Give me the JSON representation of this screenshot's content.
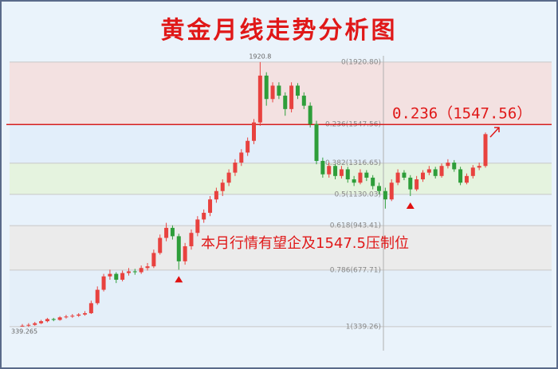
{
  "chart_data": {
    "type": "candlestick",
    "title": "黄金月线走势分析图",
    "annotations": [
      "0.236（1547.56）",
      "本月行情有望企及1547.5压制位"
    ],
    "up_color": "#e8423f",
    "down_color": "#2e9e3a",
    "line_color": "#d42020",
    "ylim": [
      196,
      2006
    ],
    "fib_levels": [
      {
        "value": 1920.8,
        "label": "0(1920.80)"
      },
      {
        "value": 1547.56,
        "label": "0.236(1547.56)"
      },
      {
        "value": 1316.65,
        "label": "0.382(1316.65)"
      },
      {
        "value": 1130.03,
        "label": "0.5(1130.03)"
      },
      {
        "value": 943.41,
        "label": "0.618(943.41)"
      },
      {
        "value": 677.71,
        "label": "0.786(677.71)"
      },
      {
        "value": 339.26,
        "label": "1(339.26)"
      }
    ],
    "band_colors": [
      "#f3e1e1",
      "#e2eefa",
      "#e5f3df",
      "#e8f2fb",
      "#ebebeb",
      "#e4eff9"
    ],
    "candles": [
      [
        340,
        355,
        339.265,
        345
      ],
      [
        345,
        360,
        338,
        350
      ],
      [
        350,
        368,
        345,
        360
      ],
      [
        360,
        380,
        355,
        372
      ],
      [
        372,
        392,
        365,
        385
      ],
      [
        385,
        392,
        372,
        380
      ],
      [
        380,
        402,
        375,
        395
      ],
      [
        395,
        410,
        388,
        400
      ],
      [
        400,
        415,
        392,
        405
      ],
      [
        405,
        420,
        398,
        412
      ],
      [
        412,
        432,
        405,
        420
      ],
      [
        420,
        495,
        415,
        480
      ],
      [
        480,
        580,
        470,
        560
      ],
      [
        560,
        655,
        550,
        640
      ],
      [
        640,
        680,
        620,
        655
      ],
      [
        655,
        665,
        600,
        620
      ],
      [
        620,
        675,
        610,
        660
      ],
      [
        660,
        690,
        645,
        670
      ],
      [
        670,
        685,
        650,
        665
      ],
      [
        665,
        705,
        655,
        690
      ],
      [
        690,
        720,
        675,
        700
      ],
      [
        700,
        800,
        690,
        780
      ],
      [
        780,
        890,
        770,
        870
      ],
      [
        870,
        960,
        850,
        930
      ],
      [
        930,
        945,
        860,
        880
      ],
      [
        880,
        895,
        680,
        730
      ],
      [
        730,
        840,
        710,
        820
      ],
      [
        820,
        920,
        800,
        900
      ],
      [
        900,
        1000,
        880,
        980
      ],
      [
        980,
        1040,
        960,
        1020
      ],
      [
        1020,
        1120,
        1000,
        1100
      ],
      [
        1100,
        1170,
        1080,
        1150
      ],
      [
        1150,
        1220,
        1120,
        1200
      ],
      [
        1200,
        1280,
        1180,
        1260
      ],
      [
        1260,
        1340,
        1240,
        1320
      ],
      [
        1320,
        1400,
        1300,
        1380
      ],
      [
        1380,
        1470,
        1360,
        1450
      ],
      [
        1450,
        1580,
        1430,
        1560
      ],
      [
        1560,
        1920.8,
        1540,
        1840
      ],
      [
        1840,
        1860,
        1660,
        1700
      ],
      [
        1700,
        1800,
        1680,
        1780
      ],
      [
        1780,
        1800,
        1700,
        1720
      ],
      [
        1720,
        1740,
        1600,
        1640
      ],
      [
        1640,
        1800,
        1620,
        1780
      ],
      [
        1780,
        1795,
        1700,
        1720
      ],
      [
        1720,
        1740,
        1640,
        1660
      ],
      [
        1660,
        1680,
        1530,
        1550
      ],
      [
        1550,
        1570,
        1310,
        1330
      ],
      [
        1330,
        1350,
        1230,
        1250
      ],
      [
        1250,
        1320,
        1230,
        1300
      ],
      [
        1300,
        1310,
        1220,
        1240
      ],
      [
        1240,
        1300,
        1225,
        1280
      ],
      [
        1280,
        1295,
        1200,
        1220
      ],
      [
        1220,
        1240,
        1180,
        1200
      ],
      [
        1200,
        1280,
        1190,
        1260
      ],
      [
        1260,
        1275,
        1210,
        1230
      ],
      [
        1230,
        1245,
        1160,
        1180
      ],
      [
        1180,
        1200,
        1130,
        1150
      ],
      [
        1150,
        1170,
        1045,
        1100
      ],
      [
        1100,
        1220,
        1090,
        1200
      ],
      [
        1200,
        1280,
        1185,
        1260
      ],
      [
        1260,
        1275,
        1215,
        1230
      ],
      [
        1230,
        1245,
        1120,
        1160
      ],
      [
        1160,
        1240,
        1150,
        1220
      ],
      [
        1220,
        1275,
        1205,
        1260
      ],
      [
        1260,
        1300,
        1245,
        1280
      ],
      [
        1280,
        1295,
        1225,
        1240
      ],
      [
        1240,
        1315,
        1230,
        1300
      ],
      [
        1300,
        1340,
        1285,
        1320
      ],
      [
        1320,
        1335,
        1265,
        1280
      ],
      [
        1280,
        1295,
        1185,
        1200
      ],
      [
        1200,
        1255,
        1190,
        1240
      ],
      [
        1240,
        1305,
        1225,
        1290
      ],
      [
        1290,
        1320,
        1275,
        1300
      ],
      [
        1300,
        1500,
        1290,
        1490
      ]
    ]
  }
}
